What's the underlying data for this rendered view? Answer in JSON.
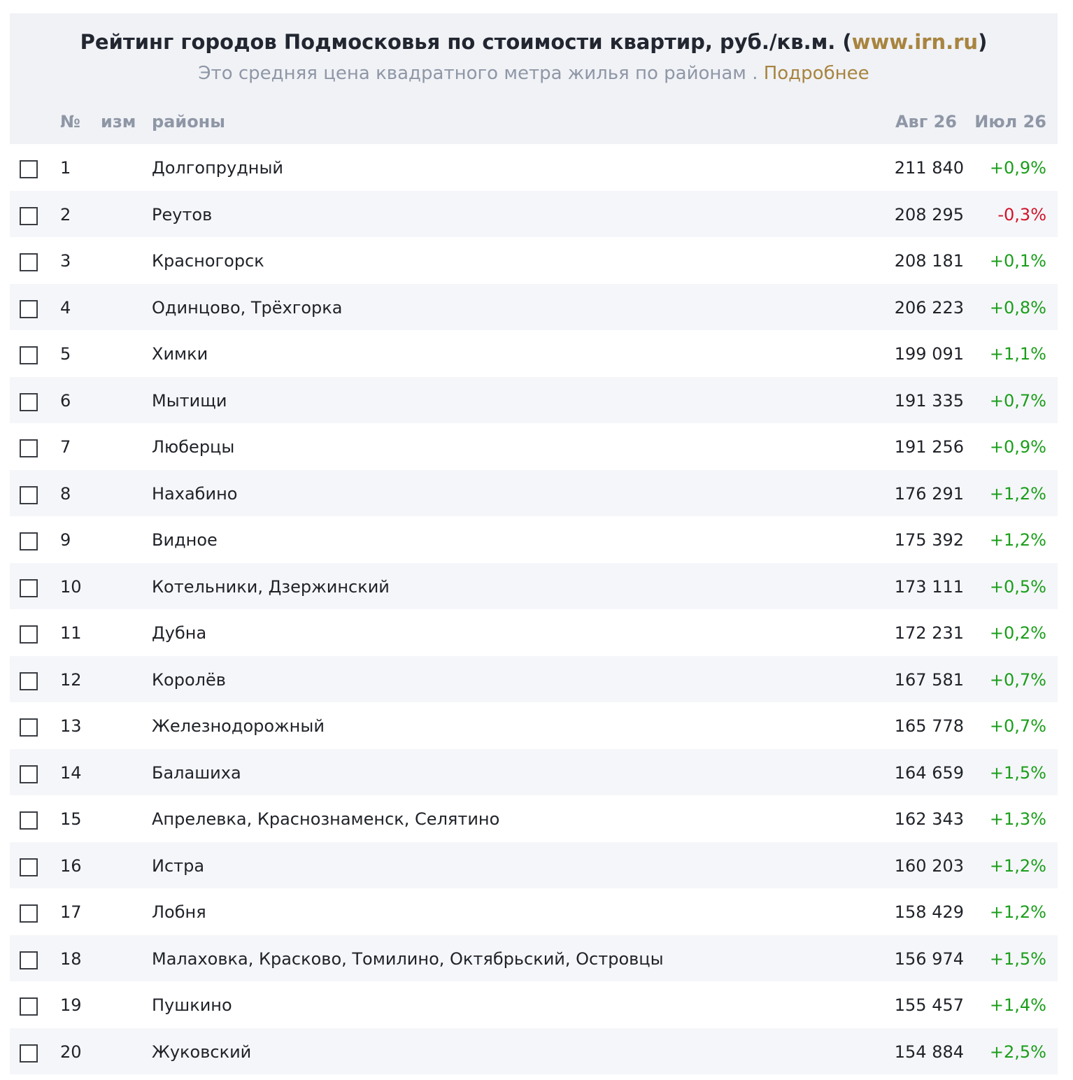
{
  "header": {
    "title_main": "Рейтинг городов Подмосковья по стоимости квартир, руб./кв.м. (",
    "title_link": "www.irn.ru",
    "title_end": ")",
    "subtitle_text": "Это средняя цена квадратного метра жилья по районам . ",
    "subtitle_link": "Подробнее"
  },
  "columns": {
    "num": "№",
    "change": "изм",
    "districts": "районы",
    "aug": "Авг 26",
    "jul": "Июл 26"
  },
  "colors": {
    "accent": "#a8843f",
    "positive": "#1a9e1a",
    "negative": "#d0142b"
  },
  "rows": [
    {
      "n": "1",
      "name": "Долгопрудный",
      "price": "211 840",
      "change": "+0,9%"
    },
    {
      "n": "2",
      "name": "Реутов",
      "price": "208 295",
      "change": "-0,3%"
    },
    {
      "n": "3",
      "name": "Красногорск",
      "price": "208 181",
      "change": "+0,1%"
    },
    {
      "n": "4",
      "name": "Одинцово, Трёхгорка",
      "price": "206 223",
      "change": "+0,8%"
    },
    {
      "n": "5",
      "name": "Химки",
      "price": "199 091",
      "change": "+1,1%"
    },
    {
      "n": "6",
      "name": "Мытищи",
      "price": "191 335",
      "change": "+0,7%"
    },
    {
      "n": "7",
      "name": "Люберцы",
      "price": "191 256",
      "change": "+0,9%"
    },
    {
      "n": "8",
      "name": "Нахабино",
      "price": "176 291",
      "change": "+1,2%"
    },
    {
      "n": "9",
      "name": "Видное",
      "price": "175 392",
      "change": "+1,2%"
    },
    {
      "n": "10",
      "name": "Котельники, Дзержинский",
      "price": "173 111",
      "change": "+0,5%"
    },
    {
      "n": "11",
      "name": "Дубна",
      "price": "172 231",
      "change": "+0,2%"
    },
    {
      "n": "12",
      "name": "Королёв",
      "price": "167 581",
      "change": "+0,7%"
    },
    {
      "n": "13",
      "name": "Железнодорожный",
      "price": "165 778",
      "change": "+0,7%"
    },
    {
      "n": "14",
      "name": "Балашиха",
      "price": "164 659",
      "change": "+1,5%"
    },
    {
      "n": "15",
      "name": "Апрелевка, Краснознаменск, Селятино",
      "price": "162 343",
      "change": "+1,3%"
    },
    {
      "n": "16",
      "name": "Истра",
      "price": "160 203",
      "change": "+1,2%"
    },
    {
      "n": "17",
      "name": "Лобня",
      "price": "158 429",
      "change": "+1,2%"
    },
    {
      "n": "18",
      "name": "Малаховка, Красково, Томилино, Октябрьский, Островцы",
      "price": "156 974",
      "change": "+1,5%"
    },
    {
      "n": "19",
      "name": "Пушкино",
      "price": "155 457",
      "change": "+1,4%"
    },
    {
      "n": "20",
      "name": "Жуковский",
      "price": "154 884",
      "change": "+2,5%"
    }
  ]
}
